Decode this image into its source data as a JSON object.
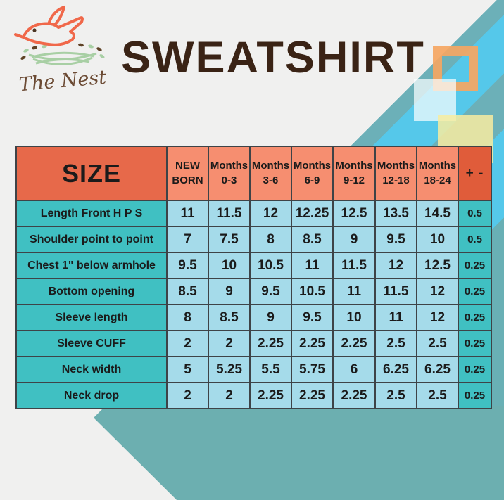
{
  "brand": {
    "name": "The Nest"
  },
  "title": "SWEATSHIRT",
  "table": {
    "size_header": "SIZE",
    "tolerance_header": "+ -",
    "age_columns": [
      "NEW BORN",
      "Months 0-3",
      "Months 3-6",
      "Months 6-9",
      "Months 9-12",
      "Months 12-18",
      "Months 18-24"
    ],
    "rows": [
      {
        "label": "Length Front H P S",
        "values": [
          "11",
          "11.5",
          "12",
          "12.25",
          "12.5",
          "13.5",
          "14.5"
        ],
        "tolerance": "0.5"
      },
      {
        "label": "Shoulder point to point",
        "values": [
          "7",
          "7.5",
          "8",
          "8.5",
          "9",
          "9.5",
          "10"
        ],
        "tolerance": "0.5"
      },
      {
        "label": "Chest 1\" below armhole",
        "values": [
          "9.5",
          "10",
          "10.5",
          "11",
          "11.5",
          "12",
          "12.5"
        ],
        "tolerance": "0.25"
      },
      {
        "label": "Bottom opening",
        "values": [
          "8.5",
          "9",
          "9.5",
          "10.5",
          "11",
          "11.5",
          "12"
        ],
        "tolerance": "0.25"
      },
      {
        "label": "Sleeve length",
        "values": [
          "8",
          "8.5",
          "9",
          "9.5",
          "10",
          "11",
          "12"
        ],
        "tolerance": "0.25"
      },
      {
        "label": "Sleeve CUFF",
        "values": [
          "2",
          "2",
          "2.25",
          "2.25",
          "2.25",
          "2.5",
          "2.5"
        ],
        "tolerance": "0.25"
      },
      {
        "label": "Neck width",
        "values": [
          "5",
          "5.25",
          "5.5",
          "5.75",
          "6",
          "6.25",
          "6.25"
        ],
        "tolerance": "0.25"
      },
      {
        "label": "Neck drop",
        "values": [
          "2",
          "2",
          "2.25",
          "2.25",
          "2.25",
          "2.5",
          "2.5"
        ],
        "tolerance": "0.25"
      }
    ]
  },
  "colors": {
    "background": "#f0f0ef",
    "title_text": "#3a2315",
    "size_header_cell": "#e7694a",
    "age_header_cell": "#f68e70",
    "tolerance_header_cell": "#e05c3a",
    "label_cell": "#40c0c2",
    "value_cell": "#a5dbea",
    "table_border": "#3e4347",
    "stripe_cyan": "#55c8ea",
    "stripe_teal": "#6cb0b8",
    "bottom_corner_shape": "#6cafb0",
    "logo_bird": "#f0684a",
    "logo_nest_green": "#a8cfa4",
    "logo_script_brown": "#6b4a33",
    "square_orange": "#f5a662",
    "square_yellow": "#f8eca0"
  }
}
